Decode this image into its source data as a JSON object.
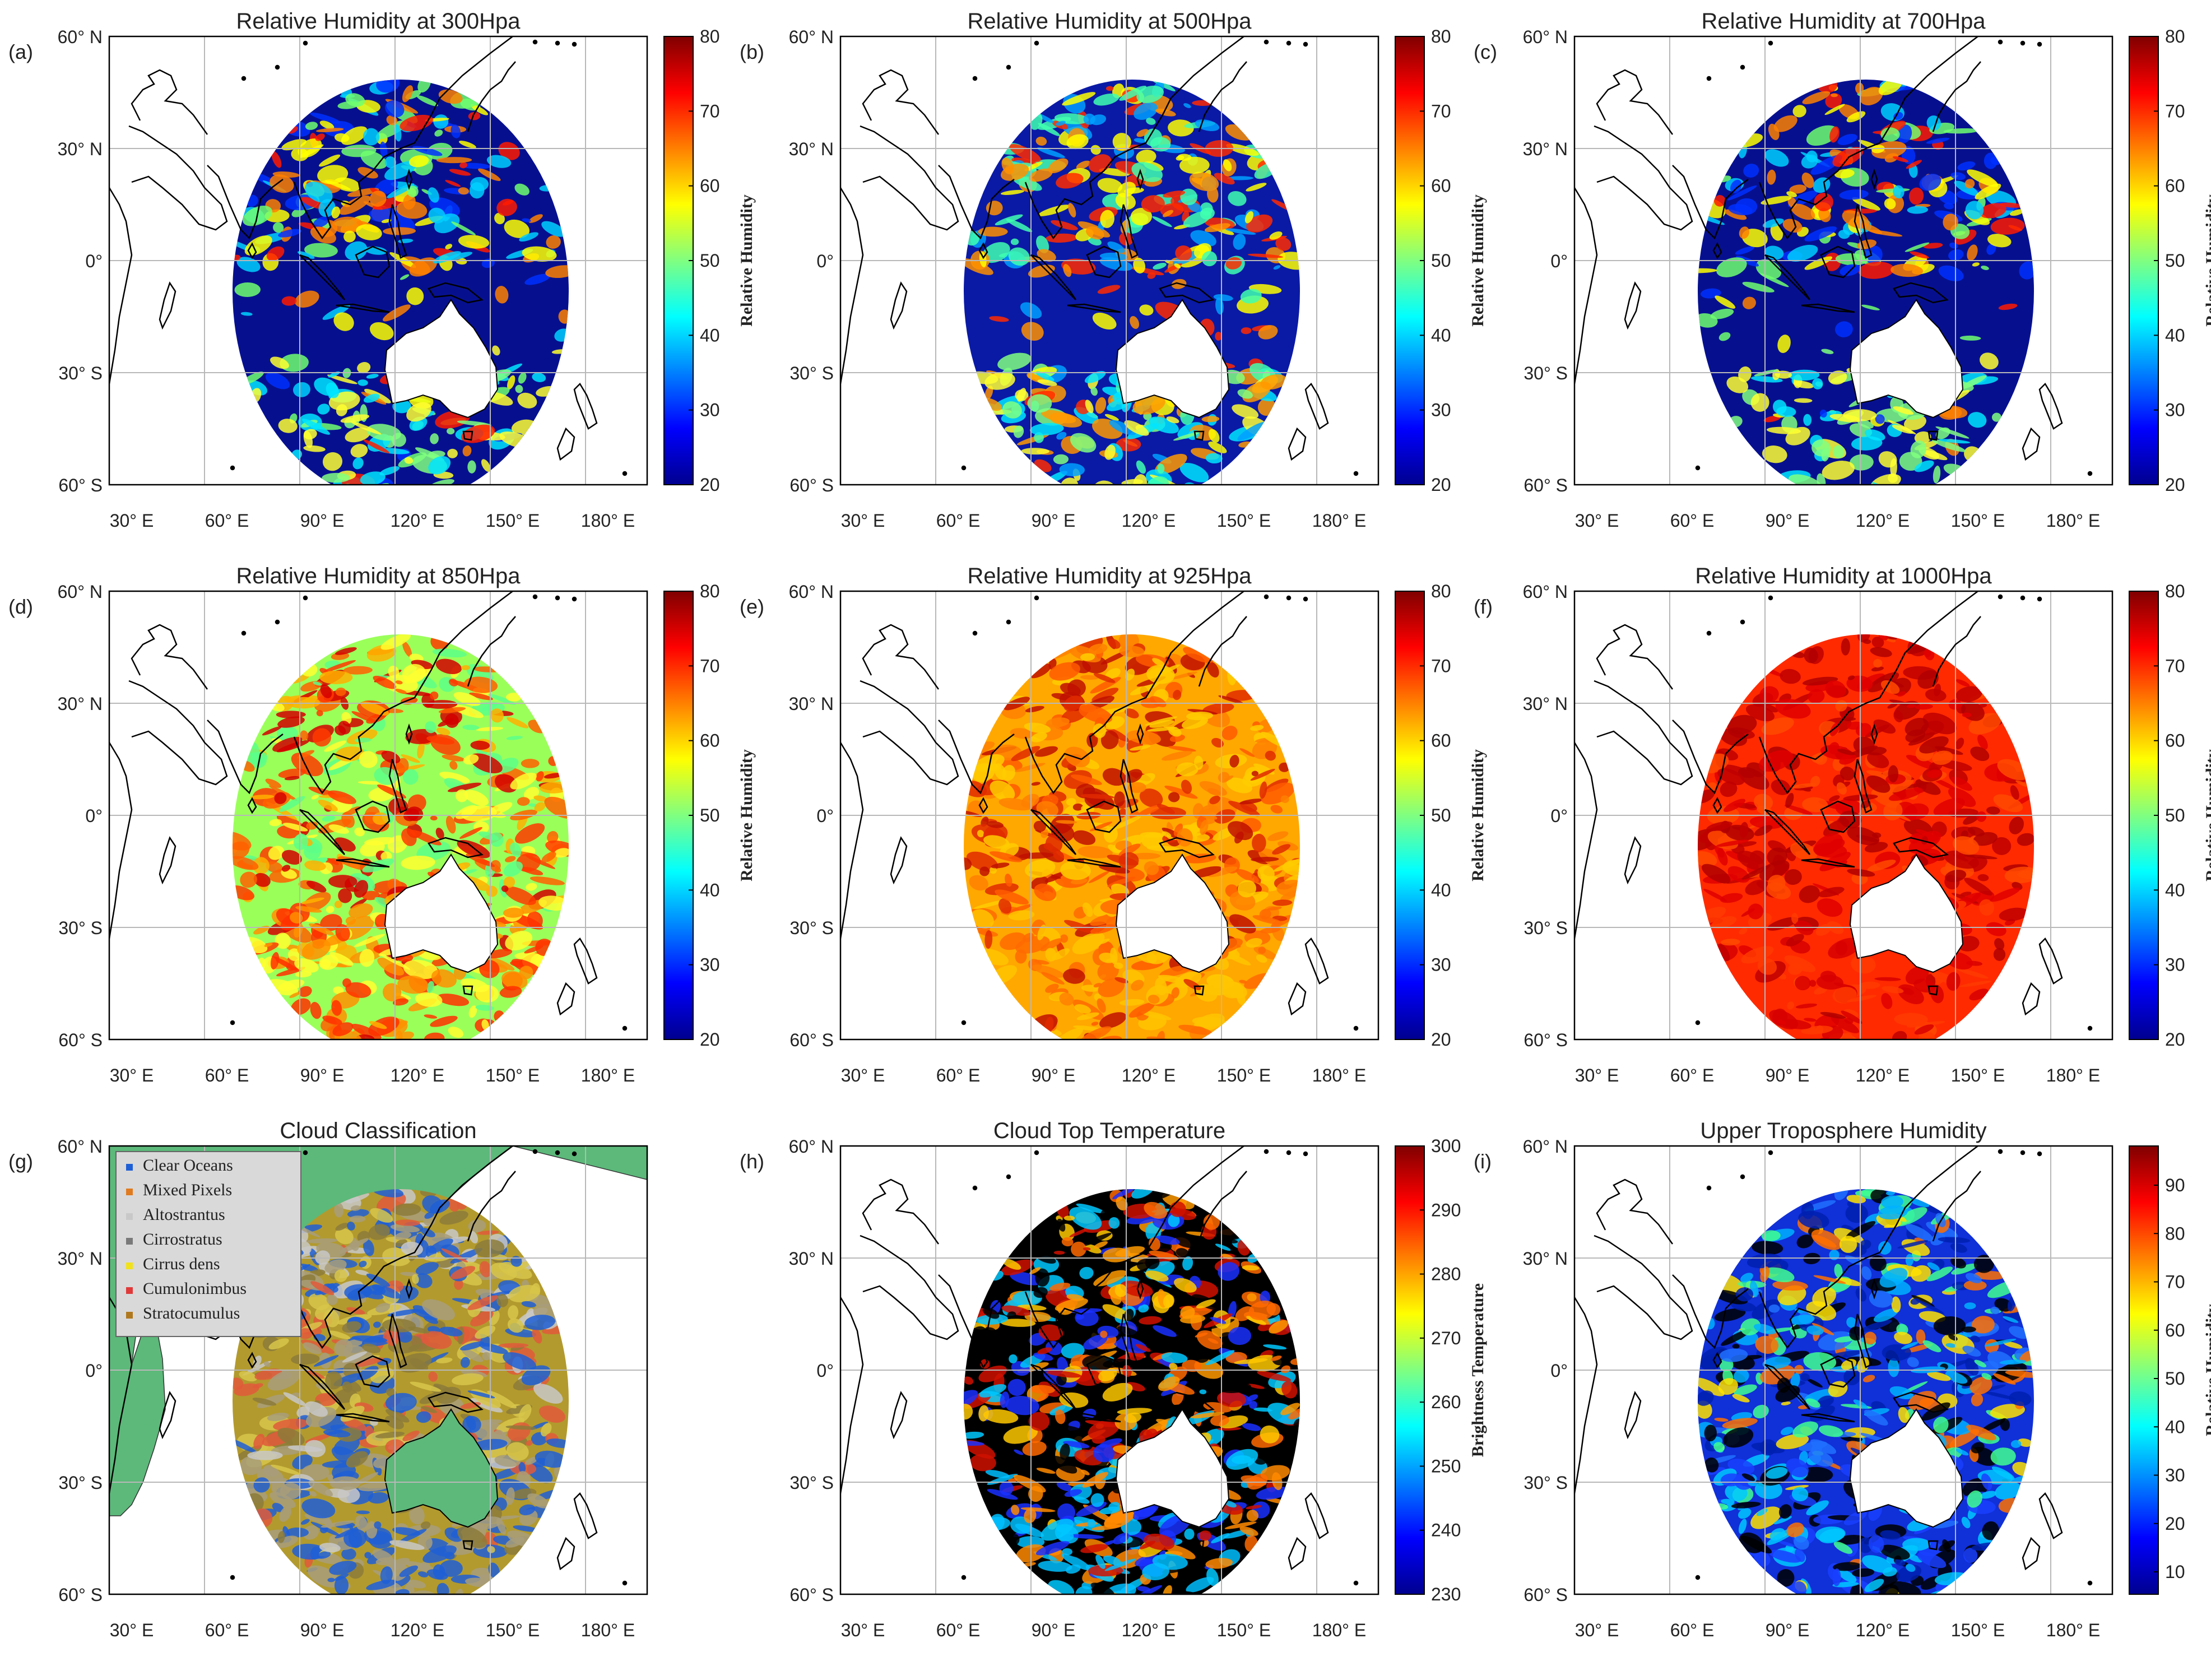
{
  "axes": {
    "lat_labels": [
      "60° N",
      "30° N",
      "0°",
      "30° S",
      "60° S"
    ],
    "lon_labels": [
      "30° E",
      "60° E",
      "90° E",
      "120° E",
      "150° E",
      "180° E"
    ]
  },
  "panels": [
    {
      "id": "a",
      "tag": "(a)",
      "title": "Relative Humidity at 300Hpa",
      "kind": "rh",
      "scheme": "dry",
      "cbar_label": "Relative Humidity",
      "cbar_ticks": [
        "80",
        "70",
        "60",
        "50",
        "40",
        "30",
        "20"
      ]
    },
    {
      "id": "b",
      "tag": "(b)",
      "title": "Relative Humidity at 500Hpa",
      "kind": "rh",
      "scheme": "dry2",
      "cbar_label": "Relative Humidity",
      "cbar_ticks": [
        "80",
        "70",
        "60",
        "50",
        "40",
        "30",
        "20"
      ]
    },
    {
      "id": "c",
      "tag": "(c)",
      "title": "Relative Humidity at 700Hpa",
      "kind": "rh",
      "scheme": "dry",
      "cbar_label": "Relative Humidity",
      "cbar_ticks": [
        "80",
        "70",
        "60",
        "50",
        "40",
        "30",
        "20"
      ]
    },
    {
      "id": "d",
      "tag": "(d)",
      "title": "Relative Humidity at 850Hpa",
      "kind": "rh",
      "scheme": "mid",
      "cbar_label": "Relative Humidity",
      "cbar_ticks": [
        "80",
        "70",
        "60",
        "50",
        "40",
        "30",
        "20"
      ]
    },
    {
      "id": "e",
      "tag": "(e)",
      "title": "Relative Humidity at 925Hpa",
      "kind": "rh",
      "scheme": "moist",
      "cbar_label": "Relative Humidity",
      "cbar_ticks": [
        "80",
        "70",
        "60",
        "50",
        "40",
        "30",
        "20"
      ]
    },
    {
      "id": "f",
      "tag": "(f)",
      "title": "Relative Humidity at 1000Hpa",
      "kind": "rh",
      "scheme": "wet",
      "cbar_label": "Relative Humidity",
      "cbar_ticks": [
        "80",
        "70",
        "60",
        "50",
        "40",
        "30",
        "20"
      ]
    },
    {
      "id": "g",
      "tag": "(g)",
      "title": "Cloud Classification",
      "kind": "class",
      "scheme": "class",
      "cbar_label": "",
      "cbar_ticks": []
    },
    {
      "id": "h",
      "tag": "(h)",
      "title": "Cloud Top Temperature",
      "kind": "ctt",
      "scheme": "ctt",
      "cbar_label": "Brightness Temperature",
      "cbar_ticks": [
        "300",
        "290",
        "280",
        "270",
        "260",
        "250",
        "240",
        "230"
      ]
    },
    {
      "id": "i",
      "tag": "(i)",
      "title": "Upper Troposphere Humidity",
      "kind": "uth",
      "scheme": "uth",
      "cbar_label": "Relative Humidity",
      "cbar_ticks": [
        "90",
        "80",
        "70",
        "60",
        "50",
        "40",
        "30",
        "20",
        "10"
      ]
    }
  ],
  "legend": [
    {
      "label": "Clear Oceans",
      "color": "#1f5fd6"
    },
    {
      "label": "Mixed Pixels",
      "color": "#e07b1f"
    },
    {
      "label": "Altostrantus",
      "color": "#c8c8c8"
    },
    {
      "label": "Cirrostratus",
      "color": "#7a7a7a"
    },
    {
      "label": "Cirrus dens",
      "color": "#f2e21a"
    },
    {
      "label": "Cumulonimbus",
      "color": "#e03a3a"
    },
    {
      "label": "Stratocumulus",
      "color": "#b0781e"
    }
  ],
  "colors": {
    "jet": [
      "#00008f",
      "#0000ff",
      "#0080ff",
      "#00ffff",
      "#80ff80",
      "#ffff00",
      "#ff8000",
      "#ff0000",
      "#800000"
    ],
    "land_class": "#5cb97a"
  }
}
